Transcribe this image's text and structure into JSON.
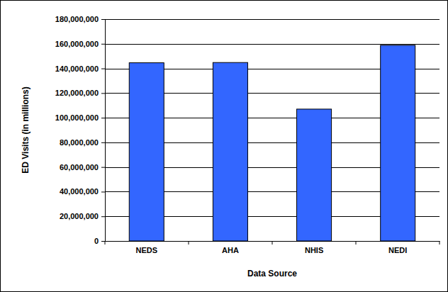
{
  "chart_data": {
    "type": "bar",
    "x_label": "Data Source",
    "y_label": "ED Visits (in millions)",
    "categories": [
      "NEDS",
      "AHA",
      "NHIS",
      "NEDI"
    ],
    "values": [
      144600000,
      144800000,
      107000000,
      158800000
    ],
    "color": "#3366ff",
    "ylim": [
      0,
      180000000
    ],
    "yticks": [
      0,
      {
        "value": 20000000,
        "label": "20,000,000"
      },
      {
        "value": 40000000,
        "label": "40,000,000"
      },
      {
        "value": 60000000,
        "label": "60,000,000"
      },
      {
        "value": 80000000,
        "label": "80,000,000"
      },
      {
        "value": 100000000,
        "label": "100,000,000"
      },
      {
        "value": 120000000,
        "label": "120,000,000"
      },
      {
        "value": 140000000,
        "label": "140,000,000"
      },
      {
        "value": 160000000,
        "label": "160,000,000"
      },
      {
        "value": 180000000,
        "label": "180,000,000"
      }
    ],
    "grid": true
  }
}
